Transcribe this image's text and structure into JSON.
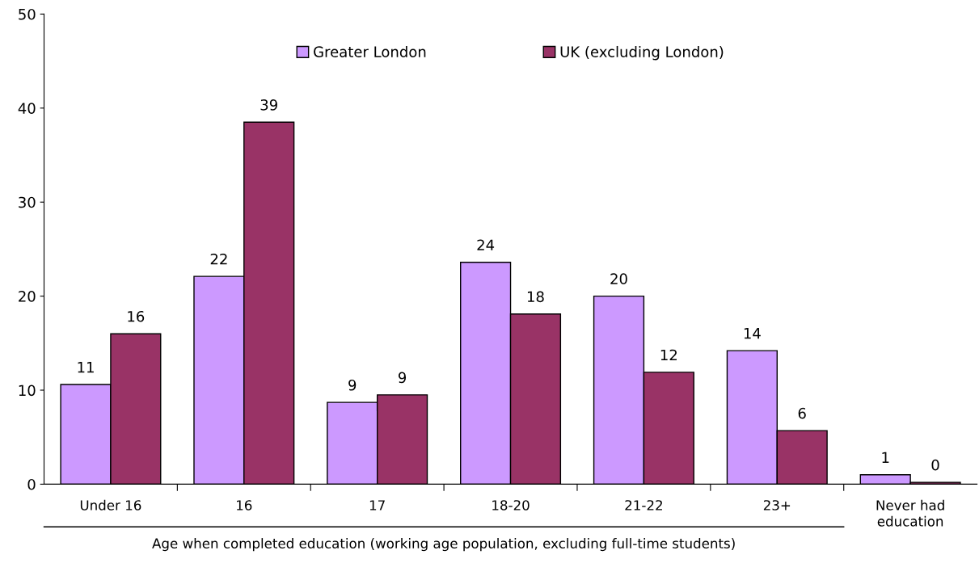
{
  "chart_data": {
    "type": "bar",
    "xlabel": "Age when completed education (working age population, excluding full-time students)",
    "categories": [
      "Under 16",
      "16",
      "17",
      "18-20",
      "21-22",
      "23+",
      "Never had\neducation"
    ],
    "series": [
      {
        "name": "Greater London",
        "color": "#cc99ff",
        "values": [
          10.6,
          22.1,
          8.7,
          23.6,
          20.0,
          14.2,
          1.0
        ],
        "value_labels": [
          "11",
          "22",
          "9",
          "24",
          "20",
          "14",
          "1"
        ]
      },
      {
        "name": "UK (excluding London)",
        "color": "#993366",
        "values": [
          16.0,
          38.5,
          9.5,
          18.1,
          11.9,
          5.7,
          0.2
        ],
        "value_labels": [
          "16",
          "39",
          "9",
          "18",
          "12",
          "6",
          "0"
        ]
      }
    ],
    "ylim": [
      0,
      50
    ],
    "yticks": [
      0,
      10,
      20,
      30,
      40,
      50
    ],
    "grid": false,
    "legend": "top"
  }
}
